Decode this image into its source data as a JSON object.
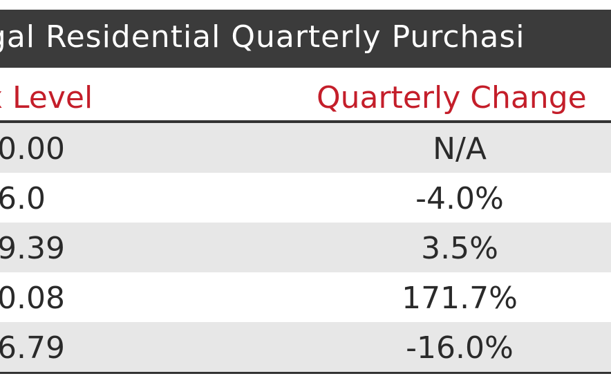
{
  "table": {
    "title": "ugal Residential Quarterly Purchasi",
    "headers": {
      "level": "x Level",
      "change": "Quarterly Change"
    },
    "rows": [
      {
        "level": "0.00",
        "change": "N/A"
      },
      {
        "level": "6.0",
        "change": "-4.0%"
      },
      {
        "level": "9.39",
        "change": "3.5%"
      },
      {
        "level": "0.08",
        "change": "171.7%"
      },
      {
        "level": "6.79",
        "change": "-16.0%"
      }
    ]
  },
  "colors": {
    "title_bg": "#3b3b3b",
    "header_text": "#c41e2a",
    "shaded_row": "#e7e7e7"
  }
}
